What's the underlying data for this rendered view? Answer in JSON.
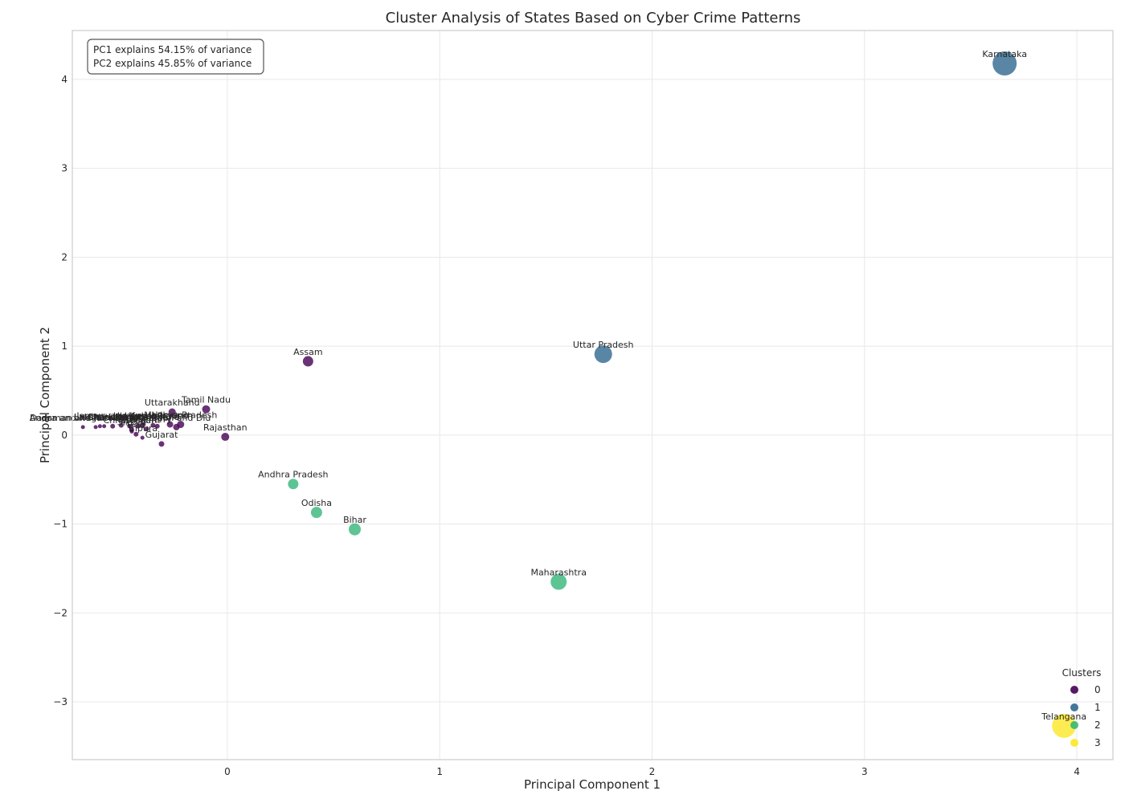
{
  "chart_data": {
    "type": "scatter",
    "title": "Cluster Analysis of States Based on Cyber Crime Patterns",
    "xlabel": "Principal Component 1",
    "ylabel": "Principal Component 2",
    "xlim": [
      -0.73,
      4.17
    ],
    "ylim": [
      -3.65,
      4.55
    ],
    "xticks": [
      0,
      1,
      2,
      3,
      4
    ],
    "yticks": [
      -3,
      -2,
      -1,
      0,
      1,
      2,
      3,
      4
    ],
    "xtick_labels": [
      "0",
      "1",
      "2",
      "3",
      "4"
    ],
    "ytick_labels": [
      "−3",
      "−2",
      "−1",
      "0",
      "1",
      "2",
      "3",
      "4"
    ],
    "grid": true,
    "annotation": [
      "PC1 explains 54.15% of variance",
      "PC2 explains 45.85% of variance"
    ],
    "legend": {
      "title": "Clusters",
      "placement": "lower-right",
      "entries": [
        {
          "label": "0",
          "color": "#440154"
        },
        {
          "label": "1",
          "color": "#31688e"
        },
        {
          "label": "2",
          "color": "#35b779"
        },
        {
          "label": "3",
          "color": "#fde725"
        }
      ]
    },
    "points": [
      {
        "name": "Karnataka",
        "x": 3.66,
        "y": 4.18,
        "cluster": 1,
        "size": 15
      },
      {
        "name": "Uttar Pradesh",
        "x": 1.77,
        "y": 0.91,
        "cluster": 1,
        "size": 11
      },
      {
        "name": "Telangana",
        "x": 3.94,
        "y": -3.27,
        "cluster": 3,
        "size": 15
      },
      {
        "name": "Maharashtra",
        "x": 1.56,
        "y": -1.65,
        "cluster": 2,
        "size": 10
      },
      {
        "name": "Bihar",
        "x": 0.6,
        "y": -1.06,
        "cluster": 2,
        "size": 7.5
      },
      {
        "name": "Odisha",
        "x": 0.42,
        "y": -0.87,
        "cluster": 2,
        "size": 7
      },
      {
        "name": "Andhra Pradesh",
        "x": 0.31,
        "y": -0.55,
        "cluster": 2,
        "size": 6.5
      },
      {
        "name": "Assam",
        "x": 0.38,
        "y": 0.83,
        "cluster": 0,
        "size": 6.5
      },
      {
        "name": "Rajasthan",
        "x": -0.01,
        "y": -0.02,
        "cluster": 0,
        "size": 5
      },
      {
        "name": "Tamil Nadu",
        "x": -0.1,
        "y": 0.29,
        "cluster": 0,
        "size": 5
      },
      {
        "name": "Uttarakhand",
        "x": -0.26,
        "y": 0.26,
        "cluster": 0,
        "size": 4.5
      },
      {
        "name": "Haryana",
        "x": -0.27,
        "y": 0.12,
        "cluster": 0,
        "size": 4
      },
      {
        "name": "Madhya Pradesh",
        "x": -0.22,
        "y": 0.12,
        "cluster": 0,
        "size": 4.5
      },
      {
        "name": "Daman and Diu",
        "x": -0.24,
        "y": 0.09,
        "cluster": 0,
        "size": 4
      },
      {
        "name": "Gujarat",
        "x": -0.31,
        "y": -0.1,
        "cluster": 0,
        "size": 3.5
      },
      {
        "name": "Kerala",
        "x": -0.4,
        "y": 0.11,
        "cluster": 0,
        "size": 3.5
      },
      {
        "name": "Mizoram",
        "x": -0.42,
        "y": 0.1,
        "cluster": 0,
        "size": 3
      },
      {
        "name": "Punjab",
        "x": -0.46,
        "y": 0.1,
        "cluster": 0,
        "size": 3
      },
      {
        "name": "Jammu and Kashmir",
        "x": -0.5,
        "y": 0.11,
        "cluster": 0,
        "size": 3
      },
      {
        "name": "Chandigarh",
        "x": -0.54,
        "y": 0.1,
        "cluster": 0,
        "size": 3
      },
      {
        "name": "Dadra and Nagar Haveli",
        "x": -0.68,
        "y": 0.09,
        "cluster": 0,
        "size": 2.5
      },
      {
        "name": "Andaman and Nicobar Islands",
        "x": -0.62,
        "y": 0.09,
        "cluster": 0,
        "size": 2.5
      },
      {
        "name": "Delhi",
        "x": -0.6,
        "y": 0.1,
        "cluster": 0,
        "size": 2.5
      },
      {
        "name": "Lakshadweep",
        "x": -0.58,
        "y": 0.1,
        "cluster": 0,
        "size": 2.5
      },
      {
        "name": "Chhattisgarh",
        "x": -0.45,
        "y": 0.06,
        "cluster": 0,
        "size": 3
      },
      {
        "name": "Goa",
        "x": -0.43,
        "y": 0.01,
        "cluster": 0,
        "size": 3
      },
      {
        "name": "Sikkim",
        "x": -0.45,
        "y": 0.04,
        "cluster": 0,
        "size": 2.5
      },
      {
        "name": "Puducherry",
        "x": -0.38,
        "y": 0.07,
        "cluster": 0,
        "size": 3
      },
      {
        "name": "Himachal Pradesh",
        "x": -0.35,
        "y": 0.11,
        "cluster": 0,
        "size": 3
      },
      {
        "name": "Jharkhand",
        "x": -0.33,
        "y": 0.1,
        "cluster": 0,
        "size": 3
      },
      {
        "name": "Tripura",
        "x": -0.4,
        "y": -0.03,
        "cluster": 0,
        "size": 2.5
      }
    ]
  }
}
